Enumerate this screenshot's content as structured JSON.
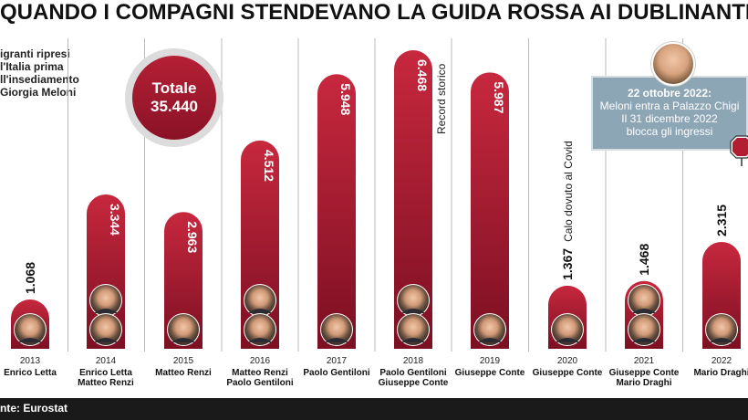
{
  "title": "QUANDO I COMPAGNI STENDEVANO LA GUIDA ROSSA AI DUBLINANTI",
  "intro_lines": [
    "igranti ripresi",
    "l'Italia prima",
    "ll'insediamento",
    "Giorgia Meloni"
  ],
  "total": {
    "label": "Totale",
    "value": "35.440"
  },
  "source": "nte: Eurostat",
  "note": {
    "date": "22 ottobre 2022:",
    "lines": [
      "Meloni entra a Palazzo Chigi",
      "Il 31 dicembre 2022",
      "blocca gli ingressi"
    ]
  },
  "colors": {
    "bar_top": "#c7283e",
    "bar_bottom": "#7c0f22",
    "note_bg": "#8da6b6",
    "stop_sign": "#b21e2f"
  },
  "icons": [
    "person-photo-icon",
    "stop-sign-icon"
  ],
  "chart_data": {
    "type": "bar",
    "categories": [
      "2013",
      "2014",
      "2015",
      "2016",
      "2017",
      "2018",
      "2019",
      "2020",
      "2021",
      "2022"
    ],
    "values": [
      1068,
      3344,
      2963,
      4512,
      5948,
      6468,
      5987,
      1367,
      1468,
      2315
    ],
    "value_labels": [
      "1.068",
      "3.344",
      "2.963",
      "4.512",
      "5.948",
      "6.468",
      "5.987",
      "1.367",
      "1.468",
      "2.315"
    ],
    "leaders": [
      [
        "Enrico Letta"
      ],
      [
        "Enrico Letta",
        "Matteo Renzi"
      ],
      [
        "Matteo Renzi"
      ],
      [
        "Matteo Renzi",
        "Paolo Gentiloni"
      ],
      [
        "Paolo Gentiloni"
      ],
      [
        "Paolo Gentiloni",
        "Giuseppe Conte"
      ],
      [
        "Giuseppe Conte"
      ],
      [
        "Giuseppe Conte"
      ],
      [
        "Giuseppe Conte",
        "Mario Draghi"
      ],
      [
        "Mario Draghi"
      ]
    ],
    "annotations": [
      {
        "category": "2018",
        "text": "Record storico"
      },
      {
        "category": "2020",
        "text": "Calo dovuto al Covid"
      }
    ],
    "title": "QUANDO I COMPAGNI STENDEVANO LA GUIDA ROSSA AI DUBLINANTI",
    "xlabel": "",
    "ylabel": "",
    "ylim": [
      0,
      6468
    ],
    "grid": false,
    "legend": "none"
  }
}
